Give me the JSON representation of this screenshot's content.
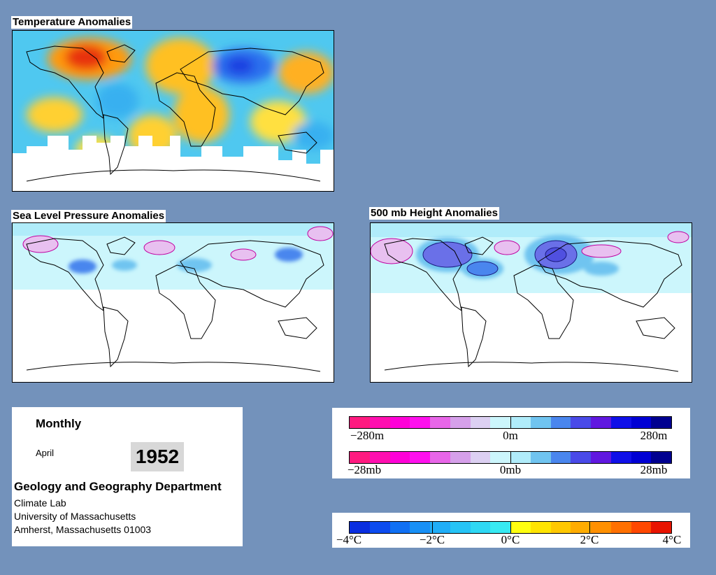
{
  "panels": {
    "temperature": {
      "title": "Temperature Anomalies"
    },
    "slp": {
      "title": "Sea Level Pressure Anomalies"
    },
    "height": {
      "title": "500 mb Height Anomalies"
    }
  },
  "info": {
    "period": "Monthly",
    "month": "April",
    "year": "1952",
    "department": "Geology and Geography Department",
    "address": [
      "Climate Lab",
      "University of Massachusetts",
      "Amherst, Massachusetts 01003"
    ]
  },
  "legends": {
    "height": {
      "labels": [
        "−280m",
        "0m",
        "280m"
      ],
      "colors": [
        "#ff1a80",
        "#ff0fb0",
        "#ff00d8",
        "#ff10ee",
        "#e866e8",
        "#d6a0ea",
        "#dcd0f2",
        "#ccf6fc",
        "#b0ecfa",
        "#70c4f0",
        "#4a86ee",
        "#4a4ae8",
        "#6018e0",
        "#1010e8",
        "#0000d4",
        "#000090"
      ]
    },
    "slp": {
      "labels": [
        "−28mb",
        "0mb",
        "28mb"
      ],
      "colors": [
        "#ff1a80",
        "#ff0fb0",
        "#ff00d8",
        "#ff10ee",
        "#e866e8",
        "#d6a0ea",
        "#dcd0f2",
        "#ccf6fc",
        "#b0ecfa",
        "#70c4f0",
        "#4a86ee",
        "#4a4ae8",
        "#6018e0",
        "#1010e8",
        "#0000d4",
        "#000090"
      ]
    },
    "temperature": {
      "labels": [
        "−4°C",
        "−2°C",
        "0°C",
        "2°C",
        "4°C"
      ],
      "colors": [
        "#0a2ee0",
        "#0d4cf0",
        "#1070f4",
        "#1890f6",
        "#20aef8",
        "#26c4f6",
        "#2ed8f4",
        "#38eaf2",
        "#ffff10",
        "#ffe400",
        "#ffc800",
        "#ffac00",
        "#ff9000",
        "#ff7000",
        "#ff4800",
        "#e81400"
      ]
    }
  }
}
